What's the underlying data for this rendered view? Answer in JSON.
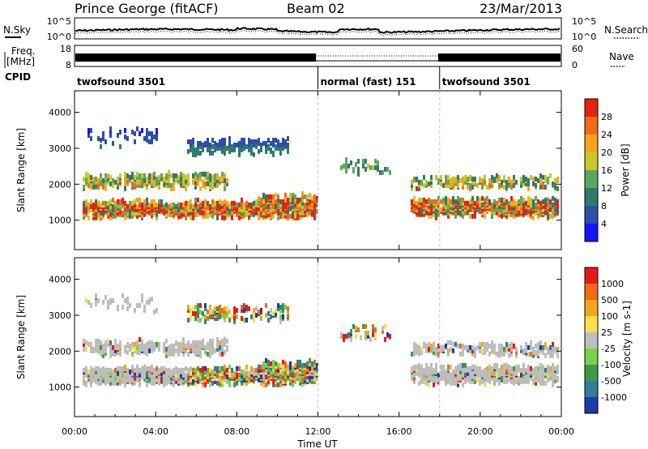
{
  "header": {
    "station": "Prince George (fitACF)",
    "beam": "Beam 02",
    "date": "23/Mar/2013"
  },
  "top_panels": {
    "nsky_label": "N.Sky",
    "nsky_ticks": [
      "10^5",
      "10^0"
    ],
    "nsearch_label": "N.Search",
    "nsearch_ticks": [
      "10^5",
      "10^0"
    ],
    "freq_label_1": "Freq.",
    "freq_label_2": "[MHz]",
    "freq_ticks": [
      "18",
      "8"
    ],
    "nave_label": "Nave",
    "nave_ticks": [
      "60",
      "0"
    ],
    "cpid_label": "CPID",
    "cpid_segments": [
      {
        "label": "twofsound 3501",
        "start_hr": 0,
        "end_hr": 12
      },
      {
        "label": "normal (fast) 151",
        "start_hr": 12,
        "end_hr": 18
      },
      {
        "label": "twofsound 3501",
        "start_hr": 18,
        "end_hr": 24
      }
    ]
  },
  "x_axis": {
    "label": "Time UT",
    "ticks": [
      "00:00",
      "04:00",
      "08:00",
      "12:00",
      "16:00",
      "20:00",
      "00:00"
    ]
  },
  "chart_data": [
    {
      "type": "heatmap",
      "panel": "power",
      "xlabel": "Time UT",
      "ylabel": "Slant Range [km]",
      "xlim": [
        0,
        24
      ],
      "ylim": [
        180,
        4600
      ],
      "y_ticks": [
        1000,
        2000,
        3000,
        4000
      ],
      "colorbar": {
        "label": "Power [dB]",
        "ticks": [
          "4",
          "8",
          "12",
          "16",
          "20",
          "24",
          "28"
        ],
        "colors": [
          "#1414ff",
          "#2c4fa8",
          "#2f7a6c",
          "#5aa860",
          "#c8c82a",
          "#f7a21c",
          "#f46a14",
          "#e82012"
        ]
      }
    },
    {
      "type": "heatmap",
      "panel": "velocity",
      "xlabel": "Time UT",
      "ylabel": "Slant Range [km]",
      "xlim": [
        0,
        24
      ],
      "ylim": [
        180,
        4600
      ],
      "y_ticks": [
        1000,
        2000,
        3000,
        4000
      ],
      "colorbar": {
        "label": "Velocity [m s-1]",
        "ticks": [
          "1000",
          "500",
          "100",
          "25",
          "-25",
          "-100",
          "-500",
          "-1000"
        ],
        "colors": [
          "#1e3aa8",
          "#2f7f96",
          "#3c9a46",
          "#7ad24a",
          "#bebebe",
          "#f7e04a",
          "#f6a51a",
          "#f26a14",
          "#e41a1a"
        ]
      }
    }
  ],
  "colors": {
    "ground_scatter": "#bdbdbd",
    "background": "#ffffff"
  }
}
